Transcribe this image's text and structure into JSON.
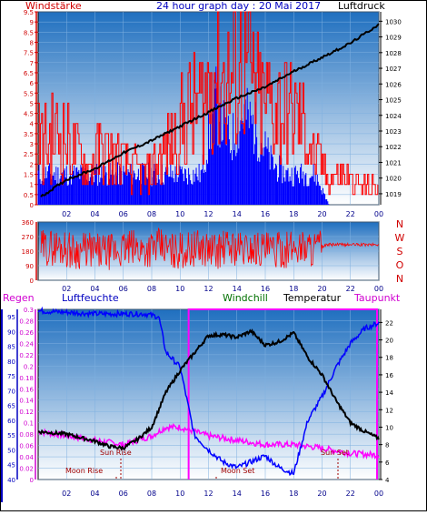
{
  "header": {
    "left": "Windstärke",
    "center": "24 hour graph day : 20 Mai 2017",
    "right": "Luftdruck"
  },
  "bottom_header": {
    "regen": "Regen",
    "luftfeuchte": "Luftfeuchte",
    "windchill": "Windchill",
    "temperatur": "Temperatur",
    "taupunkt": "Taupunkt"
  },
  "colors": {
    "wind": "#ff0000",
    "gust": "#0000ff",
    "pressure": "#000000",
    "temperature": "#000000",
    "humidity": "#0000ff",
    "dewpoint": "#ff00ff",
    "rain": "#ff00ff",
    "sky_top": "#1f6fbf",
    "sky_bottom": "#ffffff"
  },
  "chart_data": [
    {
      "type": "line",
      "x_ticks": [
        "02",
        "04",
        "06",
        "08",
        "10",
        "12",
        "14",
        "16",
        "18",
        "20",
        "22",
        "00"
      ],
      "left_axis": {
        "label": "Windstärke",
        "ticks": [
          "0",
          "0.5",
          "1",
          "1.5",
          "2",
          "2.5",
          "3",
          "3.5",
          "4",
          "4.5",
          "5",
          "5.5",
          "6",
          "6.5",
          "7",
          "7.5",
          "8",
          "8.5",
          "9",
          "9.5"
        ],
        "ylim": [
          0,
          9.5
        ]
      },
      "right_axis": {
        "label": "Luftdruck",
        "ticks": [
          "1019",
          "1020",
          "1021",
          "1022",
          "1023",
          "1024",
          "1025",
          "1026",
          "1027",
          "1028",
          "1029",
          "1030"
        ],
        "ylim": [
          1018.3,
          1030.6
        ]
      },
      "series": [
        {
          "name": "Luftdruck",
          "x": [
            0.2,
            2,
            4,
            6,
            8,
            10,
            12,
            14,
            16,
            18,
            20,
            22,
            24
          ],
          "values": [
            1018.8,
            1019.9,
            1020.6,
            1021.6,
            1022.4,
            1023.3,
            1024.2,
            1025.1,
            1025.8,
            1026.8,
            1027.7,
            1028.6,
            1029.8
          ]
        },
        {
          "name": "Windstärke",
          "x": [
            0.5,
            1.5,
            2.5,
            3.5,
            4.5,
            5.5,
            6.5,
            7.5,
            8.5,
            9.5,
            10.5,
            11.5,
            12.5,
            13.5,
            14.5,
            15.5,
            16.5,
            17.5,
            18.5,
            19.5,
            20.5,
            21.5,
            22.5,
            23.5
          ],
          "values": [
            3.5,
            4,
            3,
            2,
            3,
            2.5,
            2,
            1.5,
            2.5,
            3.5,
            5,
            5.5,
            7.5,
            6.5,
            8,
            5.5,
            5.5,
            5,
            4.5,
            2.5,
            1.5,
            1.5,
            1,
            1
          ]
        },
        {
          "name": "Böen",
          "x": [
            0.5,
            1.5,
            2.5,
            3.5,
            4.5,
            5.5,
            6.5,
            7.5,
            8.5,
            9.5,
            10.5,
            11.5,
            12.5,
            13.5,
            14.5,
            15.5,
            16.5,
            17.5,
            18.5,
            19.5,
            20.5,
            21.5,
            22.5,
            23.5
          ],
          "values": [
            1.5,
            1.5,
            1.5,
            1.5,
            1.5,
            1.5,
            1.5,
            1.5,
            1.5,
            1.5,
            1.5,
            1.5,
            5,
            3,
            4.5,
            3.5,
            2,
            1.5,
            1.5,
            1.5,
            0,
            0,
            0,
            0
          ]
        }
      ]
    },
    {
      "type": "line",
      "x_ticks": [
        "02",
        "04",
        "06",
        "08",
        "10",
        "12",
        "14",
        "16",
        "18",
        "20",
        "22",
        "00"
      ],
      "left_axis": {
        "ticks": [
          "0",
          "90",
          "180",
          "270",
          "360"
        ],
        "ylim": [
          0,
          360
        ]
      },
      "right_axis": {
        "ticks": [
          "N",
          "W",
          "S",
          "O",
          "N"
        ]
      },
      "series": [
        {
          "name": "Windrichtung",
          "x": [
            0.5,
            1.5,
            2.5,
            3.5,
            4.5,
            5.5,
            6.5,
            7.5,
            8.5,
            9.5,
            10.5,
            11.5,
            12.5,
            13.5,
            14.5,
            15.5,
            16.5,
            17.5,
            18.5,
            19.5,
            20.5,
            21.5,
            22.5,
            23.5
          ],
          "values": [
            200,
            210,
            180,
            190,
            170,
            180,
            200,
            190,
            210,
            180,
            190,
            200,
            180,
            210,
            190,
            200,
            180,
            190,
            210,
            200,
            220,
            220,
            220,
            220
          ]
        }
      ]
    },
    {
      "type": "line",
      "x_ticks": [
        "02",
        "04",
        "06",
        "08",
        "10",
        "12",
        "14",
        "16",
        "18",
        "20",
        "22",
        "00"
      ],
      "left_axis": {
        "label": "Regen",
        "ticks": [
          "0",
          "0.02",
          "0.04",
          "0.06",
          "0.08",
          "0.1",
          "0.12",
          "0.14",
          "0.16",
          "0.18",
          "0.2",
          "0.22",
          "0.24",
          "0.26",
          "0.28",
          "0.3"
        ],
        "ylim": [
          0,
          0.3
        ]
      },
      "left_axis2": {
        "label": "Luftfeuchte",
        "ticks": [
          "40",
          "45",
          "50",
          "55",
          "60",
          "65",
          "70",
          "75",
          "80",
          "85",
          "90",
          "95"
        ],
        "ylim": [
          40,
          97.5
        ]
      },
      "right_axis": {
        "label": "Temperatur",
        "ticks": [
          "4",
          "6",
          "8",
          "10",
          "12",
          "14",
          "16",
          "18",
          "20",
          "22"
        ],
        "ylim": [
          4,
          23.5
        ]
      },
      "annotations": [
        "Moon Rise",
        "Sun Rise",
        "Moon Set",
        "Sun Set"
      ],
      "series": [
        {
          "name": "Luftfeuchte",
          "x": [
            0,
            2,
            4,
            6,
            7.5,
            8.5,
            9,
            10,
            11,
            12,
            13,
            14,
            15,
            16,
            17,
            18,
            19,
            20,
            21,
            22,
            23,
            24
          ],
          "values": [
            97,
            96.5,
            96,
            96,
            96,
            95,
            83,
            78,
            55,
            50,
            46,
            44,
            46,
            48,
            44,
            42,
            60,
            68,
            78,
            86,
            91,
            93
          ]
        },
        {
          "name": "Temperatur",
          "x": [
            0,
            2,
            4,
            5,
            6,
            7,
            8,
            9,
            10,
            11,
            12,
            13,
            14,
            15,
            16,
            17,
            18,
            19,
            20,
            21,
            22,
            23,
            24
          ],
          "values": [
            9.5,
            9.2,
            8.4,
            7.8,
            7.6,
            8.6,
            10,
            14,
            16.5,
            18.5,
            20.5,
            20.6,
            20.3,
            21,
            19.4,
            19.8,
            20.8,
            18,
            16,
            13,
            10.5,
            9.5,
            8.7
          ]
        },
        {
          "name": "Taupunkt",
          "x": [
            0,
            2,
            4,
            6,
            8,
            9,
            10,
            11,
            12,
            14,
            16,
            18,
            19,
            20,
            21,
            22,
            24
          ],
          "values": [
            9.5,
            9,
            8.5,
            8,
            9,
            10,
            10,
            9.5,
            9,
            8.5,
            8,
            8,
            7.8,
            7.6,
            7.3,
            7,
            6.8
          ]
        }
      ],
      "rain": [
        {
          "from_hour": 10.6,
          "to_hour": 24,
          "value": 0.3
        }
      ]
    }
  ]
}
